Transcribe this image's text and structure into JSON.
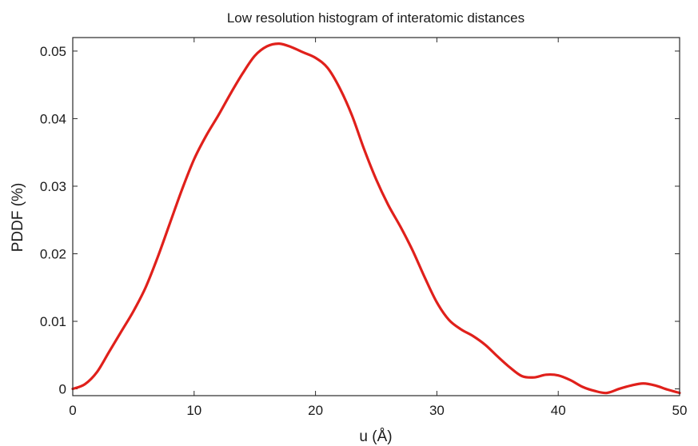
{
  "chart_data": {
    "type": "line",
    "title": "Low resolution histogram of interatomic distances",
    "xlabel": "u (Å)",
    "ylabel": "PDDF (%)",
    "xlim": [
      0,
      50
    ],
    "ylim": [
      -0.001,
      0.052
    ],
    "xticks": [
      0,
      10,
      20,
      30,
      40,
      50
    ],
    "xtick_labels": [
      "0",
      "10",
      "20",
      "30",
      "40",
      "50"
    ],
    "yticks": [
      0,
      0.01,
      0.02,
      0.03,
      0.04,
      0.05
    ],
    "ytick_labels": [
      "0",
      "0.01",
      "0.02",
      "0.03",
      "0.04",
      "0.05"
    ],
    "grid": false,
    "series": [
      {
        "color": "#e0201b",
        "x": [
          0,
          1,
          2,
          3,
          4,
          5,
          6,
          7,
          8,
          9,
          10,
          11,
          12,
          13,
          14,
          15,
          16,
          17,
          18,
          19,
          20,
          21,
          22,
          23,
          24,
          25,
          26,
          27,
          28,
          29,
          30,
          31,
          32,
          33,
          34,
          35,
          36,
          37,
          38,
          39,
          40,
          41,
          42,
          43,
          44,
          45,
          46,
          47,
          48,
          49,
          50
        ],
        "y": [
          0.0,
          0.0007,
          0.0025,
          0.0055,
          0.0085,
          0.0115,
          0.015,
          0.0195,
          0.0245,
          0.0295,
          0.034,
          0.0375,
          0.0405,
          0.0437,
          0.0467,
          0.0493,
          0.0507,
          0.0511,
          0.0506,
          0.0498,
          0.049,
          0.0475,
          0.0445,
          0.0405,
          0.0355,
          0.031,
          0.0272,
          0.024,
          0.0205,
          0.0165,
          0.0128,
          0.0102,
          0.0088,
          0.0078,
          0.0065,
          0.0048,
          0.0032,
          0.0019,
          0.0017,
          0.0021,
          0.002,
          0.0013,
          0.0003,
          -0.0003,
          -0.0006,
          0.0,
          0.0005,
          0.0008,
          0.0005,
          -0.0001,
          -0.0006
        ]
      }
    ]
  }
}
